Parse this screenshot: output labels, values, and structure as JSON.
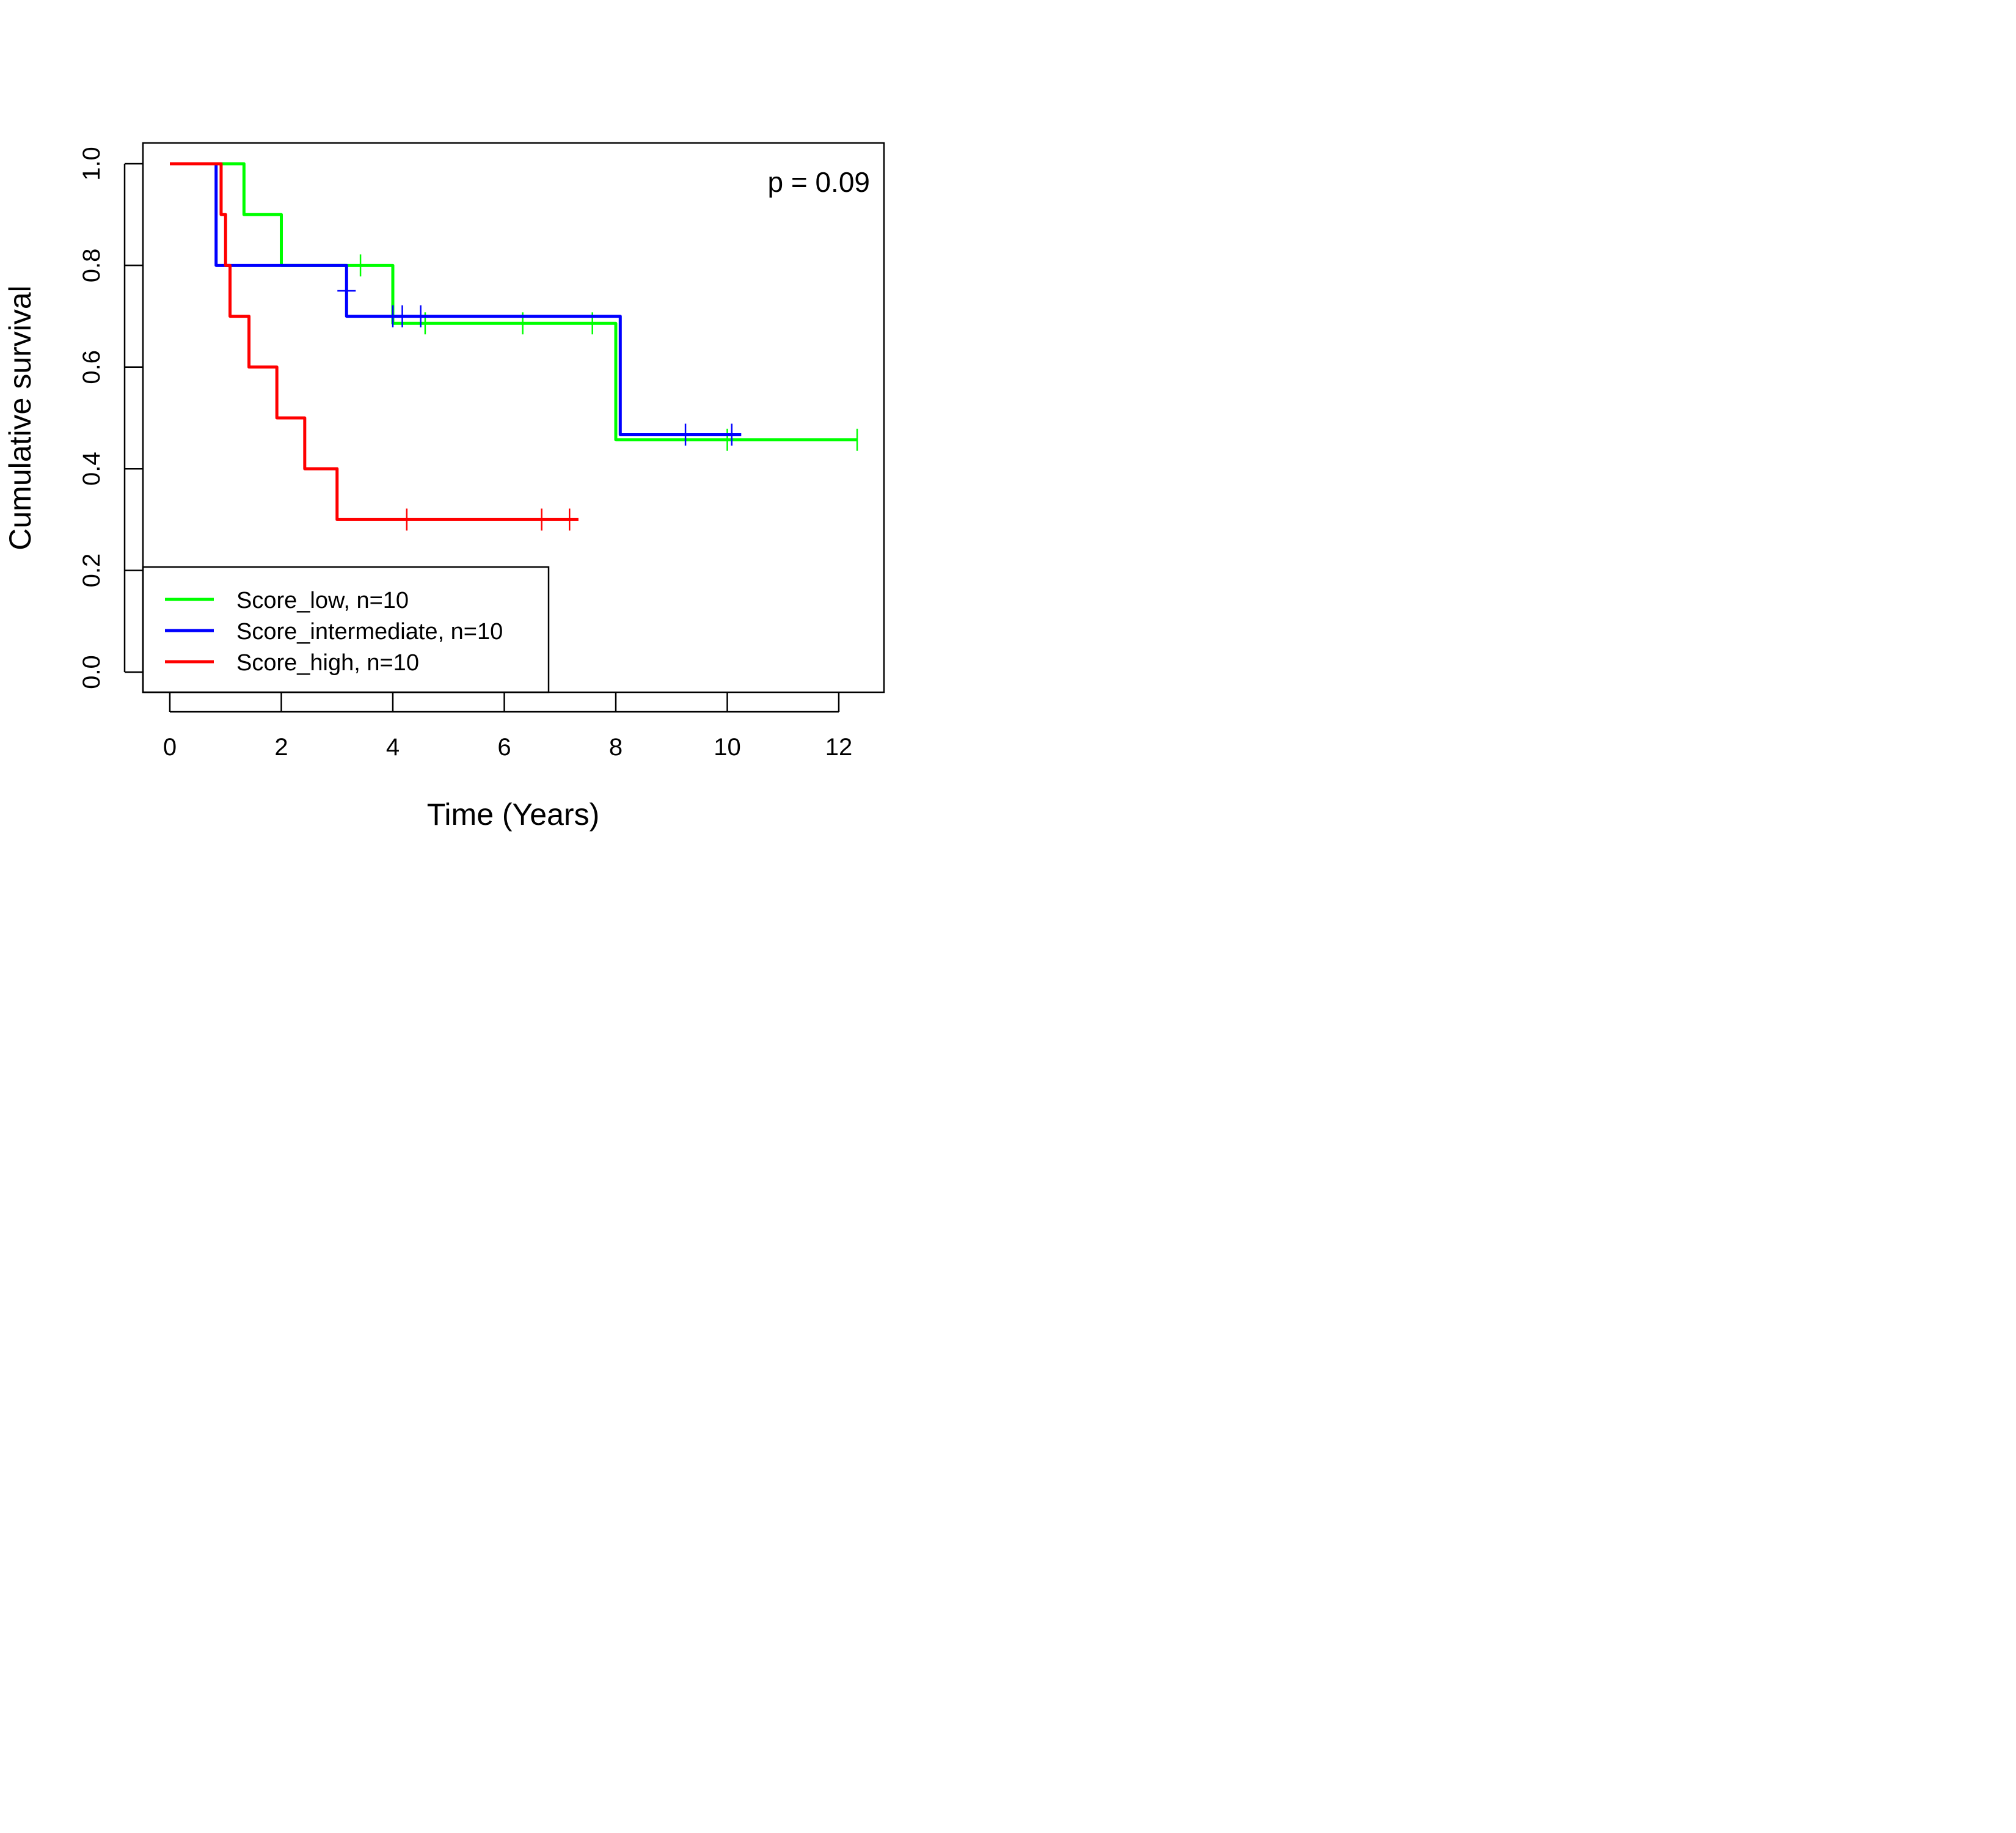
{
  "chart_data": {
    "type": "line",
    "subtype": "kaplan-meier-step",
    "title": "",
    "xlabel": "Time (Years)",
    "ylabel": "Cumulative survival",
    "xlim": [
      -0.5,
      12.8
    ],
    "ylim": [
      -0.04,
      1.04
    ],
    "xticks": [
      0,
      2,
      4,
      6,
      8,
      10,
      12
    ],
    "xtick_labels": [
      "0",
      "2",
      "4",
      "6",
      "8",
      "10",
      "12"
    ],
    "yticks": [
      0.0,
      0.2,
      0.4,
      0.6,
      0.8,
      1.0
    ],
    "ytick_labels": [
      "0.0",
      "0.2",
      "0.4",
      "0.6",
      "0.8",
      "1.0"
    ],
    "grid": false,
    "annotation": "p = 0.09",
    "annotation_position": "top-right",
    "legend_position": "bottom-left",
    "series": [
      {
        "name": "Score_low, n=10",
        "color": "#00ff00",
        "steps": [
          [
            0,
            1.0
          ],
          [
            1.33,
            0.9
          ],
          [
            2.0,
            0.8
          ],
          [
            4.0,
            0.686
          ],
          [
            8.0,
            0.457
          ]
        ],
        "end_time": 12.33,
        "censored": [
          [
            3.42,
            0.8
          ],
          [
            4.58,
            0.686
          ],
          [
            6.33,
            0.686
          ],
          [
            7.58,
            0.686
          ],
          [
            10.0,
            0.457
          ],
          [
            12.33,
            0.457
          ]
        ]
      },
      {
        "name": "Score_intermediate, n=10",
        "color": "#0000ff",
        "steps": [
          [
            0.83,
            1.0
          ],
          [
            0.83,
            0.8
          ],
          [
            3.17,
            0.7
          ],
          [
            8.08,
            0.467
          ]
        ],
        "end_time": 10.25,
        "censored": [
          [
            3.17,
            0.75
          ],
          [
            4.0,
            0.7
          ],
          [
            4.17,
            0.7
          ],
          [
            4.5,
            0.7
          ],
          [
            9.25,
            0.467
          ],
          [
            10.08,
            0.467
          ]
        ]
      },
      {
        "name": "Score_high, n=10",
        "color": "#ff0000",
        "steps": [
          [
            0,
            1.0
          ],
          [
            0.92,
            0.9
          ],
          [
            1.0,
            0.8
          ],
          [
            1.08,
            0.7
          ],
          [
            1.42,
            0.6
          ],
          [
            1.92,
            0.5
          ],
          [
            2.42,
            0.4
          ],
          [
            3.0,
            0.3
          ]
        ],
        "end_time": 7.33,
        "censored": [
          [
            4.25,
            0.3
          ],
          [
            6.67,
            0.3
          ],
          [
            7.17,
            0.3
          ]
        ]
      }
    ]
  }
}
